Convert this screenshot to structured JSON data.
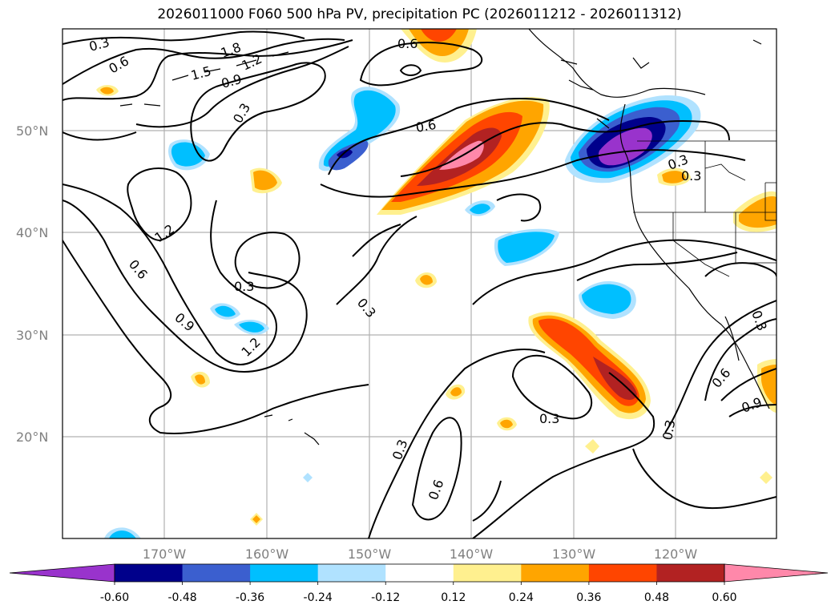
{
  "title": "2026011000 F060 500 hPa PV, precipitation PC (2026011212 - 2026011312)",
  "map": {
    "lat_labels": [
      "50°N",
      "40°N",
      "30°N",
      "20°N"
    ],
    "lon_labels": [
      "170°W",
      "160°W",
      "150°W",
      "140°W",
      "130°W",
      "120°W"
    ],
    "pv_contour_labels": [
      "0.3",
      "0.6",
      "1.5",
      "1.8",
      "1.2",
      "0.9",
      "0.3",
      "0.6",
      "1.2",
      "0.6",
      "0.9",
      "1.2",
      "0.3",
      "0.3",
      "0.6",
      "0.3",
      "0.3",
      "0.3",
      "0.6",
      "0.3",
      "0.3",
      "0.6",
      "0.9",
      "0.3"
    ]
  },
  "colorbar": {
    "levels": [
      "-0.60",
      "-0.48",
      "-0.36",
      "-0.24",
      "-0.12",
      "0.12",
      "0.24",
      "0.36",
      "0.48",
      "0.60"
    ],
    "colors": [
      "#9933cc",
      "#00008b",
      "#3b5fcf",
      "#00bfff",
      "#b0e2ff",
      "#ffffff",
      "#fff08f",
      "#ffa500",
      "#ff4500",
      "#b22222",
      "#ff88aa"
    ]
  }
}
